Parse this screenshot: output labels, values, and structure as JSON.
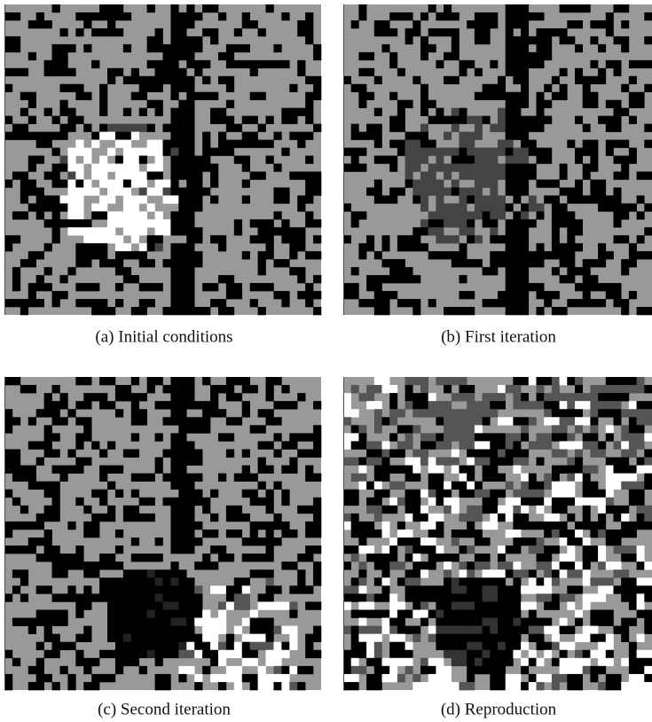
{
  "figure": {
    "panels": [
      {
        "caption": "(a) Initial conditions"
      },
      {
        "caption": "(b) First iteration"
      },
      {
        "caption": "(c) Second iteration"
      },
      {
        "caption": "(d) Reproduction"
      }
    ]
  }
}
